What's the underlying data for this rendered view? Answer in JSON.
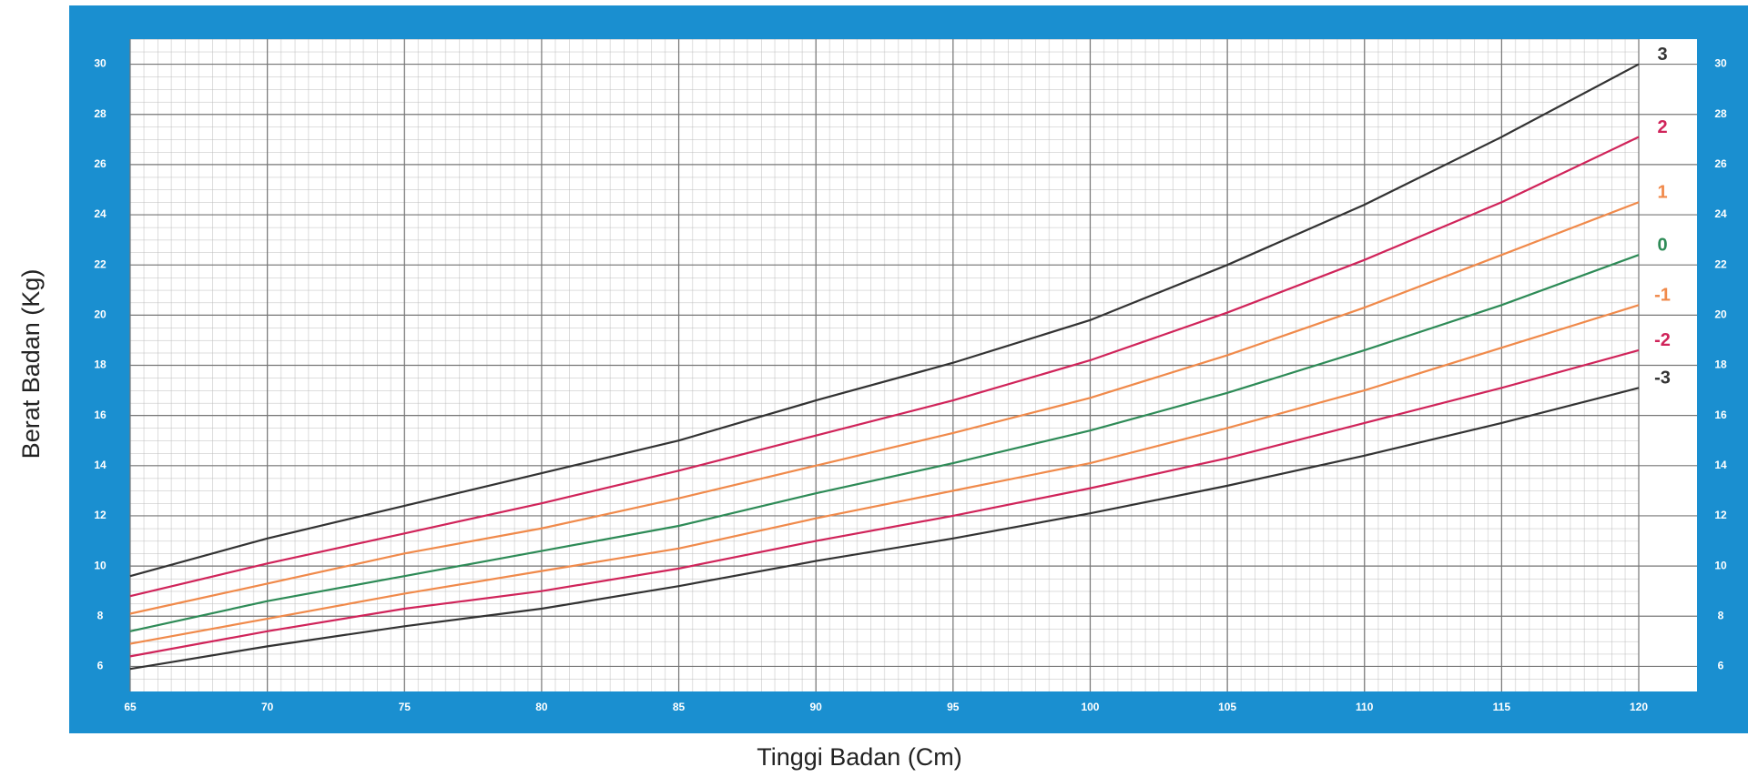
{
  "chart_data": {
    "type": "line",
    "xlabel": "Tinggi Badan (Cm)",
    "ylabel": "Berat Badan (Kg)",
    "x": [
      65,
      70,
      75,
      80,
      85,
      90,
      95,
      100,
      105,
      110,
      115,
      120
    ],
    "series": [
      {
        "name": "3",
        "color": "#333333",
        "values": [
          9.6,
          11.1,
          12.4,
          13.7,
          15.0,
          16.6,
          18.1,
          19.8,
          22.0,
          24.4,
          27.1,
          30.0
        ]
      },
      {
        "name": "2",
        "color": "#d0245a",
        "values": [
          8.8,
          10.1,
          11.3,
          12.5,
          13.8,
          15.2,
          16.6,
          18.2,
          20.1,
          22.2,
          24.5,
          27.1
        ]
      },
      {
        "name": "1",
        "color": "#f08a4b",
        "values": [
          8.1,
          9.3,
          10.5,
          11.5,
          12.7,
          14.0,
          15.3,
          16.7,
          18.4,
          20.3,
          22.4,
          24.5
        ]
      },
      {
        "name": "0",
        "color": "#2e8b57",
        "values": [
          7.4,
          8.6,
          9.6,
          10.6,
          11.6,
          12.9,
          14.1,
          15.4,
          16.9,
          18.6,
          20.4,
          22.4
        ]
      },
      {
        "name": "-1",
        "color": "#f08a4b",
        "values": [
          6.9,
          7.9,
          8.9,
          9.8,
          10.7,
          11.9,
          13.0,
          14.1,
          15.5,
          17.0,
          18.7,
          20.4
        ]
      },
      {
        "name": "-2",
        "color": "#d0245a",
        "values": [
          6.4,
          7.4,
          8.3,
          9.0,
          9.9,
          11.0,
          12.0,
          13.1,
          14.3,
          15.7,
          17.1,
          18.6
        ]
      },
      {
        "name": "-3",
        "color": "#333333",
        "values": [
          5.9,
          6.8,
          7.6,
          8.3,
          9.2,
          10.2,
          11.1,
          12.1,
          13.2,
          14.4,
          15.7,
          17.1
        ]
      }
    ],
    "xlim": [
      65,
      120
    ],
    "xticks": [
      65,
      70,
      75,
      80,
      85,
      90,
      95,
      100,
      105,
      110,
      115,
      120
    ],
    "ylim": [
      5,
      31
    ],
    "yticks": [
      6,
      8,
      10,
      12,
      14,
      16,
      18,
      20,
      22,
      24,
      26,
      28,
      30
    ],
    "grid": true
  }
}
